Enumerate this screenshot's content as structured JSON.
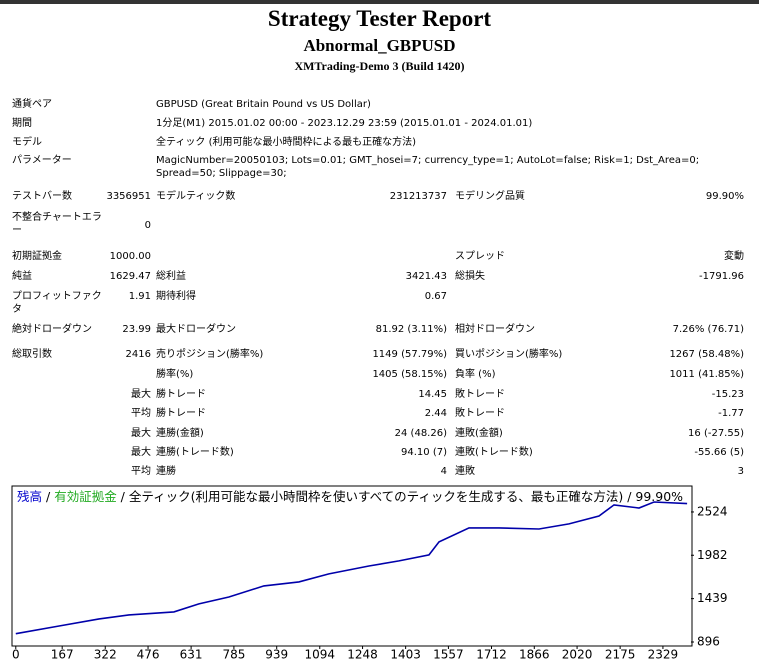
{
  "header": {
    "title": "Strategy Tester Report",
    "subtitle": "Abnormal_GBPUSD",
    "server": "XMTrading-Demo 3 (Build 1420)"
  },
  "table": {
    "rows": [
      [
        "通貨ペア",
        "GBPUSD (Great Britain Pound vs US Dollar)"
      ],
      [
        "期間",
        "1分足(M1) 2015.01.02 00:00 - 2023.12.29 23:59 (2015.01.01 - 2024.01.01)"
      ],
      [
        "モデル",
        "全ティック (利用可能な最小時間枠による最も正確な方法)"
      ],
      [
        "パラメーター",
        "MagicNumber=20050103; Lots=0.01; GMT_hosei=7; currency_type=1; AutoLot=false; Risk=1; Dst_Area=0; Spread=50; Slippage=30;"
      ],
      [
        "テストバー数",
        "3356951",
        "モデルティック数",
        "231213737",
        "モデリング品質",
        "99.90%"
      ],
      [
        "不整合チャートエラー",
        "0",
        null,
        null,
        null,
        null
      ],
      [
        "初期証拠金",
        "1000.00",
        null,
        null,
        "スプレッド",
        "変動"
      ],
      [
        "純益",
        "1629.47",
        "総利益",
        "3421.43",
        "総損失",
        "-1791.96"
      ],
      [
        "プロフィットファクタ",
        "1.91",
        "期待利得",
        "0.67",
        null,
        null
      ],
      [
        "絶対ドローダウン",
        "23.99",
        "最大ドローダウン",
        "81.92 (3.11%)",
        "相対ドローダウン",
        "7.26% (76.71)"
      ],
      [
        "総取引数",
        "2416",
        "売りポジション(勝率%)",
        "1149 (57.79%)",
        "買いポジション(勝率%)",
        "1267 (58.48%)"
      ],
      [
        null,
        null,
        "勝率(%)",
        "1405 (58.15%)",
        "負率 (%)",
        "1011 (41.85%)"
      ],
      [
        null,
        "最大",
        "勝トレード",
        "14.45",
        "敗トレード",
        "-15.23"
      ],
      [
        null,
        "平均",
        "勝トレード",
        "2.44",
        "敗トレード",
        "-1.77"
      ],
      [
        null,
        "最大",
        "連勝(金額)",
        "24 (48.26)",
        "連敗(金額)",
        "16 (-27.55)"
      ],
      [
        null,
        "最大",
        "連勝(トレード数)",
        "94.10 (7)",
        "連敗(トレード数)",
        "-55.66 (5)"
      ],
      [
        null,
        "平均",
        "連勝",
        "4",
        "連敗",
        "3"
      ]
    ]
  },
  "chart_data": {
    "type": "line",
    "legend": [
      {
        "text": "残高",
        "color": "#0000cc"
      },
      {
        "text": " / "
      },
      {
        "text": "有効証拠金",
        "color": "#22aa22"
      },
      {
        "text": " / 全ティック(利用可能な最小時間枠を使いすべてのティックを生成する、最も正確な方法) / 99.90%"
      }
    ],
    "x": [
      0,
      156,
      300,
      407,
      569,
      659,
      767,
      893,
      1019,
      1127,
      1271,
      1379,
      1487,
      1523,
      1631,
      1739,
      1883,
      1991,
      2099,
      2153,
      2243,
      2297,
      2416
    ],
    "series": [
      {
        "name": "残高",
        "color": "#0000aa",
        "values": [
          1000,
          1097,
          1185,
          1235,
          1273,
          1373,
          1460,
          1598,
          1648,
          1748,
          1848,
          1911,
          1986,
          2149,
          2324,
          2324,
          2311,
          2374,
          2474,
          2612,
          2574,
          2649,
          2629
        ]
      }
    ],
    "xlim": [
      -10,
      2430
    ],
    "xticks": [
      0,
      167,
      322,
      476,
      631,
      785,
      939,
      1094,
      1248,
      1403,
      1557,
      1712,
      1866,
      2020,
      2175,
      2329
    ],
    "ylim": [
      846,
      2849
    ],
    "yticks": [
      896,
      1439,
      1982,
      2524
    ]
  }
}
